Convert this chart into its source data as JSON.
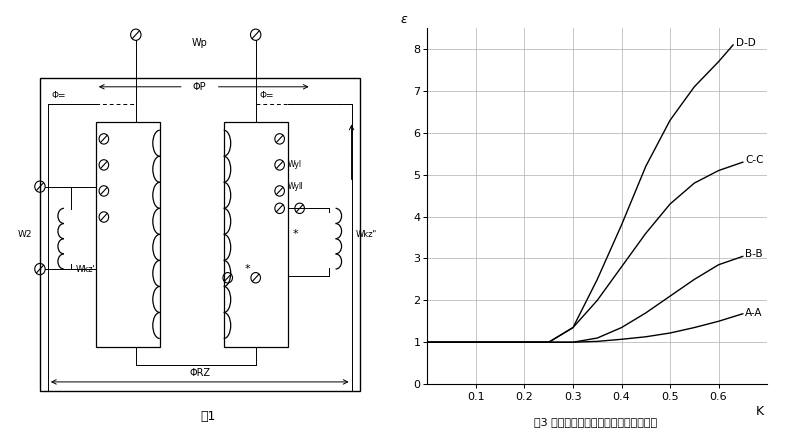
{
  "fig_width": 7.99,
  "fig_height": 4.34,
  "dpi": 100,
  "bg_color": "#ffffff",
  "chart_title": "图3 直流助磁特性曲线（该图仅供参考）",
  "fig1_title": "图1",
  "curve_AA_x": [
    0.0,
    0.05,
    0.1,
    0.15,
    0.2,
    0.25,
    0.3,
    0.35,
    0.4,
    0.45,
    0.5,
    0.55,
    0.6,
    0.65
  ],
  "curve_AA_y": [
    1.0,
    1.0,
    1.0,
    1.0,
    1.0,
    1.0,
    1.0,
    1.02,
    1.07,
    1.13,
    1.22,
    1.35,
    1.5,
    1.68
  ],
  "curve_BB_x": [
    0.0,
    0.05,
    0.1,
    0.15,
    0.2,
    0.25,
    0.3,
    0.35,
    0.4,
    0.45,
    0.5,
    0.55,
    0.6,
    0.65
  ],
  "curve_BB_y": [
    1.0,
    1.0,
    1.0,
    1.0,
    1.0,
    1.0,
    1.0,
    1.1,
    1.35,
    1.7,
    2.1,
    2.5,
    2.85,
    3.05
  ],
  "curve_CC_x": [
    0.0,
    0.05,
    0.1,
    0.15,
    0.2,
    0.25,
    0.3,
    0.35,
    0.4,
    0.45,
    0.5,
    0.55,
    0.6,
    0.65
  ],
  "curve_CC_y": [
    1.0,
    1.0,
    1.0,
    1.0,
    1.0,
    1.0,
    1.35,
    2.0,
    2.8,
    3.6,
    4.3,
    4.8,
    5.1,
    5.3
  ],
  "curve_DD_x": [
    0.0,
    0.05,
    0.1,
    0.15,
    0.2,
    0.25,
    0.3,
    0.35,
    0.4,
    0.45,
    0.5,
    0.55,
    0.6,
    0.63
  ],
  "curve_DD_y": [
    1.0,
    1.0,
    1.0,
    1.0,
    1.0,
    1.0,
    1.35,
    2.5,
    3.8,
    5.2,
    6.3,
    7.1,
    7.7,
    8.1
  ],
  "xlim": [
    0,
    0.7
  ],
  "ylim": [
    0,
    8.5
  ],
  "xticks": [
    0.1,
    0.2,
    0.3,
    0.4,
    0.5,
    0.6
  ],
  "yticks": [
    0,
    1,
    2,
    3,
    4,
    5,
    6,
    7,
    8
  ],
  "xlabel": "K",
  "ylabel": "ε",
  "label_AA": "A-A",
  "label_BB": "B-B",
  "label_CC": "C-C",
  "label_DD": "D-D",
  "line_color": "#000000",
  "grid_color": "#bbbbbb",
  "grid_linewidth": 0.6
}
